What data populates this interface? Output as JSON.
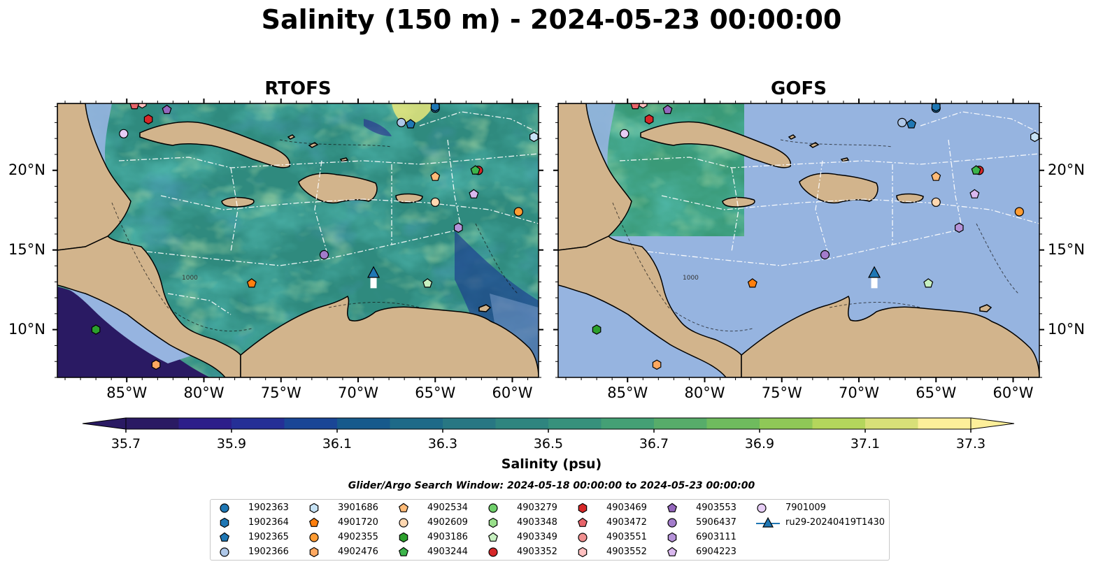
{
  "title": "Salinity (150 m) - 2024-05-23 00:00:00",
  "panels": [
    {
      "title": "RTOFS"
    },
    {
      "title": "GOFS"
    }
  ],
  "axes": {
    "lon_ticks": [
      "85°W",
      "80°W",
      "75°W",
      "70°W",
      "65°W",
      "60°W"
    ],
    "lat_ticks": [
      "20°N",
      "15°N",
      "10°N"
    ],
    "lon_range": [
      -89.5,
      -58.3
    ],
    "lat_range": [
      7.0,
      24.2
    ],
    "isobath_label": "1000"
  },
  "colorbar": {
    "label": "Salinity (psu)",
    "ticks": [
      "35.7",
      "35.9",
      "36.1",
      "36.3",
      "36.5",
      "36.7",
      "36.9",
      "37.1",
      "37.3"
    ],
    "vmin": 35.7,
    "vmax": 37.3,
    "extend": "both",
    "colormap": "haline",
    "colors": [
      "#2a1a63",
      "#2d1e8a",
      "#252f96",
      "#1a4696",
      "#175a8c",
      "#1e6a88",
      "#287783",
      "#2f857f",
      "#37917c",
      "#44a075",
      "#57ac6a",
      "#6fbb5e",
      "#8fc857",
      "#b4d65c",
      "#d8e078",
      "#fdef9a"
    ]
  },
  "search_window": "Glider/Argo Search Window: 2024-05-18 00:00:00 to 2024-05-23 00:00:00",
  "colors": {
    "land": "#d2b48c",
    "shelf_water": "#96b4e0",
    "masked_ocean": "#96b4e0",
    "rtofs_base": "#2f8a7e",
    "gofs_green": "#3a9a78",
    "grid_lines": "#ffffff"
  },
  "legend": [
    {
      "id": "1902363",
      "marker": "circle",
      "color": "#1f77b4"
    },
    {
      "id": "1902364",
      "marker": "hexagon",
      "color": "#1f77b4"
    },
    {
      "id": "1902365",
      "marker": "pentagon",
      "color": "#1f77b4"
    },
    {
      "id": "1902366",
      "marker": "circle",
      "color": "#aec7e8"
    },
    {
      "id": "3901686",
      "marker": "hexagon",
      "color": "#c6e2f5"
    },
    {
      "id": "4901720",
      "marker": "pentagon",
      "color": "#ff7f0e"
    },
    {
      "id": "4902355",
      "marker": "circle",
      "color": "#ff9c33"
    },
    {
      "id": "4902476",
      "marker": "hexagon",
      "color": "#ffa860"
    },
    {
      "id": "4902534",
      "marker": "pentagon",
      "color": "#ffbb78"
    },
    {
      "id": "4902609",
      "marker": "circle",
      "color": "#ffd7b0"
    },
    {
      "id": "4903186",
      "marker": "hexagon",
      "color": "#2ca02c"
    },
    {
      "id": "4903244",
      "marker": "pentagon",
      "color": "#3cb44b"
    },
    {
      "id": "4903279",
      "marker": "circle",
      "color": "#6fcf6a"
    },
    {
      "id": "4903348",
      "marker": "hexagon",
      "color": "#98df8a"
    },
    {
      "id": "4903349",
      "marker": "pentagon",
      "color": "#c7f0c0"
    },
    {
      "id": "4903352",
      "marker": "circle",
      "color": "#d62728"
    },
    {
      "id": "4903469",
      "marker": "hexagon",
      "color": "#d62728"
    },
    {
      "id": "4903472",
      "marker": "pentagon",
      "color": "#e8646a"
    },
    {
      "id": "4903551",
      "marker": "circle",
      "color": "#f09090"
    },
    {
      "id": "4903552",
      "marker": "hexagon",
      "color": "#ffc0c0"
    },
    {
      "id": "4903553",
      "marker": "pentagon",
      "color": "#9467bd"
    },
    {
      "id": "5906437",
      "marker": "circle",
      "color": "#a37ccb"
    },
    {
      "id": "6903111",
      "marker": "hexagon",
      "color": "#b592d8"
    },
    {
      "id": "6904223",
      "marker": "pentagon",
      "color": "#d9b8ee"
    },
    {
      "id": "7901009",
      "marker": "circle",
      "color": "#e6cdf5"
    },
    {
      "id": "ru29-20240419T1430",
      "marker": "triangle-line",
      "color": "#1f77b4"
    }
  ],
  "floats": [
    {
      "id": "1902363",
      "lon": -65.0,
      "lat": 23.9
    },
    {
      "id": "1902364",
      "lon": -65.0,
      "lat": 24.0
    },
    {
      "id": "1902366",
      "lon": -67.2,
      "lat": 23.0
    },
    {
      "id": "1902365",
      "lon": -66.6,
      "lat": 22.9
    },
    {
      "id": "3901686",
      "lon": -58.6,
      "lat": 22.1
    },
    {
      "id": "7901009",
      "lon": -85.2,
      "lat": 22.3
    },
    {
      "id": "4903552",
      "lon": -84.0,
      "lat": 24.2
    },
    {
      "id": "4903472",
      "lon": -84.5,
      "lat": 24.1
    },
    {
      "id": "4903553",
      "lon": -82.4,
      "lat": 23.8
    },
    {
      "id": "4903469",
      "lon": -83.6,
      "lat": 23.2
    },
    {
      "id": "4903352",
      "lon": -62.2,
      "lat": 20.0
    },
    {
      "id": "4903244",
      "lon": -62.4,
      "lat": 20.0
    },
    {
      "id": "4902534",
      "lon": -65.0,
      "lat": 19.6
    },
    {
      "id": "4902609",
      "lon": -65.0,
      "lat": 18.0
    },
    {
      "id": "6904223",
      "lon": -62.5,
      "lat": 18.5
    },
    {
      "id": "4902355",
      "lon": -59.6,
      "lat": 17.4
    },
    {
      "id": "6903111",
      "lon": -63.5,
      "lat": 16.4
    },
    {
      "id": "5906437",
      "lon": -72.2,
      "lat": 14.7
    },
    {
      "id": "4901720",
      "lon": -76.9,
      "lat": 12.9
    },
    {
      "id": "4903349",
      "lon": -65.5,
      "lat": 12.9
    },
    {
      "id": "4903186",
      "lon": -87.0,
      "lat": 10.0
    },
    {
      "id": "4902476",
      "lon": -83.1,
      "lat": 7.8
    }
  ],
  "glider": {
    "id": "ru29-20240419T1430",
    "track": [
      [
        -69.0,
        12.6
      ],
      [
        -69.0,
        13.4
      ]
    ],
    "lon": -69.0,
    "lat": 13.5
  }
}
